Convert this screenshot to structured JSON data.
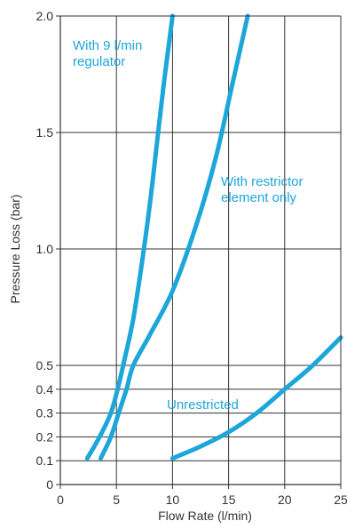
{
  "chart_data": {
    "type": "line",
    "title": "",
    "xlabel": "Flow Rate (l/min)",
    "ylabel": "Pressure Loss (bar)",
    "xlim": [
      0,
      25
    ],
    "ylim": [
      0,
      2.0
    ],
    "y_scale": "piecewise: 0–0.5 expanded, 0.5–2.0 linear",
    "grid": true,
    "legend": "none",
    "x_ticks": [
      0,
      5,
      10,
      15,
      20,
      25
    ],
    "x_tick_labels": [
      "0",
      "5",
      "10",
      "15",
      "20",
      "25"
    ],
    "y_ticks": [
      0,
      0.1,
      0.2,
      0.3,
      0.4,
      0.5,
      1.0,
      1.5,
      2.0
    ],
    "y_tick_labels": [
      "0",
      "0.1",
      "0.2",
      "0.3",
      "0.4",
      "0.5",
      "1.0",
      "1.5",
      "2.0"
    ],
    "line_color": "#1da6da",
    "series": [
      {
        "name": "With 9 l/min regulator",
        "x": [
          2.4,
          3.5,
          4.5,
          5.1,
          5.6,
          6.5,
          7.3,
          8.0,
          8.6,
          9.2,
          9.6,
          10.0
        ],
        "y": [
          0.11,
          0.2,
          0.3,
          0.4,
          0.5,
          0.7,
          0.95,
          1.2,
          1.45,
          1.7,
          1.85,
          2.0
        ]
      },
      {
        "name": "With restrictor element only",
        "x": [
          3.6,
          4.5,
          5.2,
          5.9,
          6.5,
          7.9,
          10.0,
          12.1,
          13.9,
          15.3,
          16.7
        ],
        "y": [
          0.11,
          0.2,
          0.3,
          0.4,
          0.5,
          0.625,
          0.82,
          1.1,
          1.4,
          1.7,
          2.0
        ]
      },
      {
        "name": "Unrestricted",
        "x": [
          10.0,
          12.5,
          15.0,
          17.5,
          20.0,
          22.5,
          25.0
        ],
        "y": [
          0.11,
          0.16,
          0.22,
          0.3,
          0.4,
          0.5,
          0.62
        ]
      }
    ],
    "annotations": [
      {
        "lines": [
          "With 9 l/min",
          "regulator"
        ]
      },
      {
        "lines": [
          "With restrictor",
          "element only"
        ]
      },
      {
        "lines": [
          "Unrestricted"
        ]
      }
    ]
  }
}
